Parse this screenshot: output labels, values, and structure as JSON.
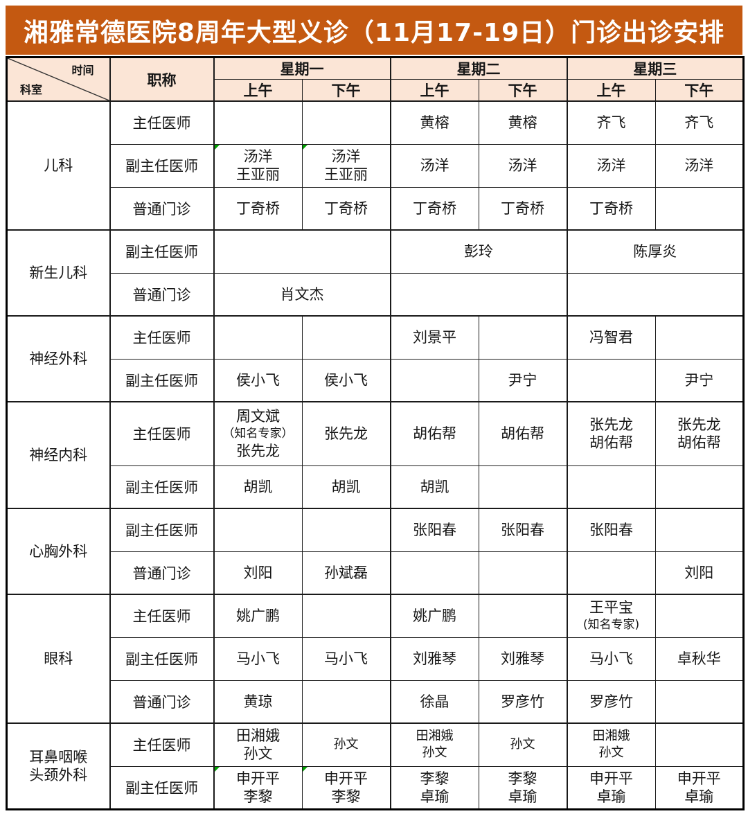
{
  "title": "湘雅常德医院8周年大型义诊（11月17-19日）门诊出诊安排",
  "colors": {
    "title_bg": "#C45911",
    "title_text": "#FFFFFF",
    "header_bg": "#FBE5D6",
    "grid": "#1A1A1A",
    "note_green": "#00A000"
  },
  "header": {
    "corner_time": "时间",
    "corner_dept": "科室",
    "role_label": "职称",
    "days": [
      "星期一",
      "星期二",
      "星期三"
    ],
    "am_label": "上午",
    "pm_label": "下午"
  },
  "sections": [
    {
      "department": "儿科",
      "rows": [
        {
          "role": "主任医师",
          "cells": [
            {
              "t": ""
            },
            {
              "t": ""
            },
            {
              "t": "黄榕"
            },
            {
              "t": "黄榕"
            },
            {
              "t": "齐飞"
            },
            {
              "t": "齐飞"
            }
          ]
        },
        {
          "role": "副主任医师",
          "cells": [
            {
              "t": "汤洋\n王亚丽",
              "note": true
            },
            {
              "t": "汤洋\n王亚丽",
              "note": true
            },
            {
              "t": "汤洋"
            },
            {
              "t": "汤洋"
            },
            {
              "t": "汤洋"
            },
            {
              "t": "汤洋"
            }
          ]
        },
        {
          "role": "普通门诊",
          "cells": [
            {
              "t": "丁奇桥"
            },
            {
              "t": "丁奇桥"
            },
            {
              "t": "丁奇桥"
            },
            {
              "t": "丁奇桥"
            },
            {
              "t": "丁奇桥"
            },
            {
              "t": ""
            }
          ]
        }
      ]
    },
    {
      "department": "新生儿科",
      "rows": [
        {
          "role": "副主任医师",
          "cells": [
            {
              "t": "",
              "span": 2
            },
            {
              "t": "彭玲",
              "span": 2
            },
            {
              "t": "陈厚炎",
              "span": 2
            }
          ]
        },
        {
          "role": "普通门诊",
          "cells": [
            {
              "t": "肖文杰",
              "span": 2
            },
            {
              "t": "",
              "span": 2
            },
            {
              "t": "",
              "span": 2
            }
          ]
        }
      ]
    },
    {
      "department": "神经外科",
      "rows": [
        {
          "role": "主任医师",
          "cells": [
            {
              "t": ""
            },
            {
              "t": ""
            },
            {
              "t": "刘景平"
            },
            {
              "t": ""
            },
            {
              "t": "冯智君"
            },
            {
              "t": ""
            }
          ]
        },
        {
          "role": "副主任医师",
          "cells": [
            {
              "t": "侯小飞"
            },
            {
              "t": "侯小飞"
            },
            {
              "t": ""
            },
            {
              "t": "尹宁"
            },
            {
              "t": ""
            },
            {
              "t": "尹宁"
            }
          ]
        }
      ]
    },
    {
      "department": "神经内科",
      "rows": [
        {
          "role": "主任医师",
          "h": 92,
          "cells": [
            {
              "t": "周文斌\n（知名专家）\n张先龙"
            },
            {
              "t": "张先龙"
            },
            {
              "t": "胡佑帮"
            },
            {
              "t": "胡佑帮"
            },
            {
              "t": "张先龙\n胡佑帮"
            },
            {
              "t": "张先龙\n胡佑帮"
            }
          ]
        },
        {
          "role": "副主任医师",
          "cells": [
            {
              "t": "胡凯"
            },
            {
              "t": "胡凯"
            },
            {
              "t": "胡凯"
            },
            {
              "t": ""
            },
            {
              "t": ""
            },
            {
              "t": ""
            }
          ]
        }
      ]
    },
    {
      "department": "心胸外科",
      "rows": [
        {
          "role": "副主任医师",
          "cells": [
            {
              "t": ""
            },
            {
              "t": ""
            },
            {
              "t": "张阳春"
            },
            {
              "t": "张阳春"
            },
            {
              "t": "张阳春"
            },
            {
              "t": ""
            }
          ]
        },
        {
          "role": "普通门诊",
          "cells": [
            {
              "t": "刘阳"
            },
            {
              "t": "孙斌磊"
            },
            {
              "t": ""
            },
            {
              "t": ""
            },
            {
              "t": ""
            },
            {
              "t": "刘阳"
            }
          ]
        }
      ]
    },
    {
      "department": "眼科",
      "rows": [
        {
          "role": "主任医师",
          "cells": [
            {
              "t": "姚广鹏"
            },
            {
              "t": ""
            },
            {
              "t": "姚广鹏"
            },
            {
              "t": ""
            },
            {
              "t": "王平宝\n(知名专家)"
            },
            {
              "t": ""
            }
          ]
        },
        {
          "role": "副主任医师",
          "cells": [
            {
              "t": "马小飞"
            },
            {
              "t": "马小飞"
            },
            {
              "t": "刘雅琴"
            },
            {
              "t": "刘雅琴"
            },
            {
              "t": "马小飞"
            },
            {
              "t": "卓秋华"
            }
          ]
        },
        {
          "role": "普通门诊",
          "cells": [
            {
              "t": "黄琼"
            },
            {
              "t": ""
            },
            {
              "t": "徐晶"
            },
            {
              "t": "罗彦竹"
            },
            {
              "t": "罗彦竹"
            },
            {
              "t": ""
            }
          ]
        }
      ]
    },
    {
      "department": "耳鼻咽喉\n头颈外科",
      "rows": [
        {
          "role": "主任医师",
          "cells": [
            {
              "t": "田湘娥\n孙文"
            },
            {
              "t": "孙文",
              "sm": true
            },
            {
              "t": "田湘娥\n孙文",
              "sm": true
            },
            {
              "t": "孙文",
              "sm": true
            },
            {
              "t": "田湘娥\n孙文",
              "sm": true
            },
            {
              "t": ""
            }
          ]
        },
        {
          "role": "副主任医师",
          "cells": [
            {
              "t": "申开平\n李黎",
              "note": true
            },
            {
              "t": "申开平\n李黎",
              "note": true
            },
            {
              "t": "李黎\n卓瑜"
            },
            {
              "t": "李黎\n卓瑜"
            },
            {
              "t": "申开平\n卓瑜"
            },
            {
              "t": "申开平\n卓瑜"
            }
          ]
        }
      ]
    }
  ]
}
